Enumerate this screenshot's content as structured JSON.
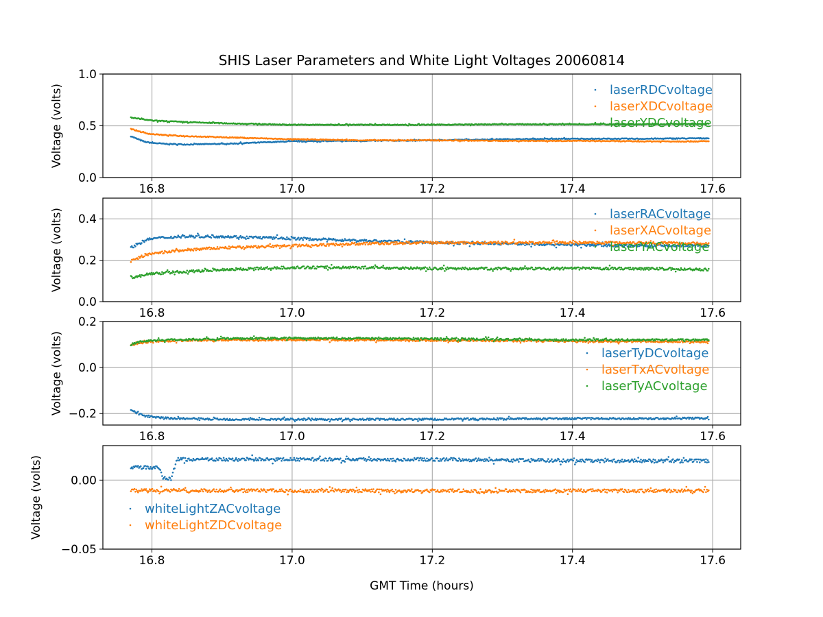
{
  "chart_data": {
    "type": "scatter",
    "title": "SHIS Laser Parameters and White Light Voltages 20060814",
    "xlabel": "GMT Time (hours)",
    "xlim": [
      16.73,
      17.64
    ],
    "xticks": [
      16.8,
      17.0,
      17.2,
      17.4,
      17.6
    ],
    "xtick_labels": [
      "16.8",
      "17.0",
      "17.2",
      "17.4",
      "17.6"
    ],
    "grid": true,
    "colors": {
      "blue": "#1f77b4",
      "orange": "#ff7f0e",
      "green": "#2ca02c"
    },
    "panels": [
      {
        "ylabel": "Voltage (volts)",
        "ylim": [
          0,
          1.0
        ],
        "yticks": [
          0,
          0.5,
          1.0
        ],
        "ytick_labels": [
          "0.0",
          "0.5",
          "1.0"
        ],
        "legend": "top-right",
        "jitter": 0.004,
        "series": [
          {
            "name": "laserRDCvoltage",
            "color": "#1f77b4",
            "x": [
              16.77,
              16.78,
              16.79,
              16.8,
              16.82,
              16.85,
              16.9,
              17.0,
              17.1,
              17.2,
              17.3,
              17.4,
              17.5,
              17.595
            ],
            "y": [
              0.4,
              0.37,
              0.345,
              0.335,
              0.325,
              0.32,
              0.325,
              0.35,
              0.355,
              0.36,
              0.37,
              0.375,
              0.375,
              0.38
            ]
          },
          {
            "name": "laserXDCvoltage",
            "color": "#ff7f0e",
            "x": [
              16.77,
              16.78,
              16.79,
              16.8,
              16.82,
              16.85,
              16.9,
              17.0,
              17.1,
              17.2,
              17.3,
              17.4,
              17.5,
              17.595
            ],
            "y": [
              0.47,
              0.45,
              0.43,
              0.42,
              0.41,
              0.4,
              0.39,
              0.37,
              0.36,
              0.36,
              0.355,
              0.355,
              0.35,
              0.35
            ]
          },
          {
            "name": "laserYDCvoltage",
            "color": "#2ca02c",
            "x": [
              16.77,
              16.78,
              16.79,
              16.8,
              16.82,
              16.85,
              16.9,
              17.0,
              17.1,
              17.2,
              17.3,
              17.4,
              17.5,
              17.595
            ],
            "y": [
              0.58,
              0.57,
              0.56,
              0.55,
              0.545,
              0.535,
              0.525,
              0.51,
              0.51,
              0.51,
              0.515,
              0.515,
              0.515,
              0.52
            ]
          }
        ]
      },
      {
        "ylabel": "Voltage (volts)",
        "ylim": [
          0,
          0.5
        ],
        "yticks": [
          0,
          0.2,
          0.4
        ],
        "ytick_labels": [
          "0.0",
          "0.2",
          "0.4"
        ],
        "legend": "top-right",
        "jitter": 0.006,
        "series": [
          {
            "name": "laserRACvoltage",
            "color": "#1f77b4",
            "x": [
              16.77,
              16.78,
              16.79,
              16.8,
              16.82,
              16.85,
              16.9,
              17.0,
              17.1,
              17.2,
              17.3,
              17.4,
              17.5,
              17.595
            ],
            "y": [
              0.26,
              0.28,
              0.295,
              0.305,
              0.31,
              0.315,
              0.315,
              0.305,
              0.295,
              0.285,
              0.28,
              0.275,
              0.27,
              0.27
            ]
          },
          {
            "name": "laserXACvoltage",
            "color": "#ff7f0e",
            "x": [
              16.77,
              16.78,
              16.79,
              16.8,
              16.82,
              16.85,
              16.9,
              17.0,
              17.1,
              17.2,
              17.3,
              17.4,
              17.5,
              17.595
            ],
            "y": [
              0.195,
              0.21,
              0.225,
              0.23,
              0.24,
              0.25,
              0.26,
              0.27,
              0.28,
              0.285,
              0.285,
              0.285,
              0.285,
              0.28
            ]
          },
          {
            "name": "laserYACvoltage",
            "color": "#2ca02c",
            "x": [
              16.77,
              16.78,
              16.79,
              16.8,
              16.82,
              16.85,
              16.9,
              17.0,
              17.1,
              17.2,
              17.3,
              17.4,
              17.5,
              17.595
            ],
            "y": [
              0.115,
              0.12,
              0.13,
              0.135,
              0.14,
              0.145,
              0.155,
              0.165,
              0.165,
              0.16,
              0.16,
              0.16,
              0.16,
              0.155
            ]
          }
        ]
      },
      {
        "ylabel": "Voltage (volts)",
        "ylim": [
          -0.25,
          0.2
        ],
        "yticks": [
          -0.2,
          0.0,
          0.2
        ],
        "ytick_labels": [
          "−0.2",
          "0.0",
          "0.2"
        ],
        "legend": "center-right",
        "jitter": 0.004,
        "series": [
          {
            "name": "laserTyDCvoltage",
            "color": "#1f77b4",
            "x": [
              16.77,
              16.78,
              16.79,
              16.8,
              16.82,
              16.85,
              16.9,
              17.0,
              17.1,
              17.2,
              17.3,
              17.4,
              17.5,
              17.595
            ],
            "y": [
              -0.185,
              -0.2,
              -0.21,
              -0.215,
              -0.22,
              -0.222,
              -0.225,
              -0.225,
              -0.225,
              -0.225,
              -0.223,
              -0.222,
              -0.222,
              -0.22
            ]
          },
          {
            "name": "laserTxACvoltage",
            "color": "#ff7f0e",
            "x": [
              16.77,
              16.78,
              16.79,
              16.8,
              16.82,
              16.85,
              16.9,
              17.0,
              17.1,
              17.2,
              17.3,
              17.4,
              17.5,
              17.595
            ],
            "y": [
              0.095,
              0.105,
              0.11,
              0.115,
              0.115,
              0.118,
              0.12,
              0.12,
              0.12,
              0.118,
              0.117,
              0.115,
              0.113,
              0.112
            ]
          },
          {
            "name": "laserTyACvoltage",
            "color": "#2ca02c",
            "x": [
              16.77,
              16.78,
              16.79,
              16.8,
              16.82,
              16.85,
              16.9,
              17.0,
              17.1,
              17.2,
              17.3,
              17.4,
              17.5,
              17.595
            ],
            "y": [
              0.1,
              0.11,
              0.115,
              0.118,
              0.12,
              0.122,
              0.125,
              0.128,
              0.127,
              0.125,
              0.122,
              0.12,
              0.12,
              0.12
            ]
          }
        ]
      },
      {
        "ylabel": "Voltage (volts)",
        "ylim": [
          -0.05,
          0.025
        ],
        "yticks": [
          -0.05,
          0.0
        ],
        "ytick_labels": [
          "−0.05",
          "0.00"
        ],
        "legend": "lower-left",
        "jitter": 0.0012,
        "series": [
          {
            "name": "whiteLightZACvoltage",
            "color": "#1f77b4",
            "x": [
              16.77,
              16.81,
              16.815,
              16.828,
              16.835,
              17.0,
              17.2,
              17.4,
              17.595
            ],
            "y": [
              0.0095,
              0.009,
              0.002,
              0.001,
              0.015,
              0.015,
              0.015,
              0.014,
              0.014
            ]
          },
          {
            "name": "whiteLightZDCvoltage",
            "color": "#ff7f0e",
            "x": [
              16.77,
              17.0,
              17.595
            ],
            "y": [
              -0.0075,
              -0.0077,
              -0.0077
            ]
          }
        ]
      }
    ]
  }
}
